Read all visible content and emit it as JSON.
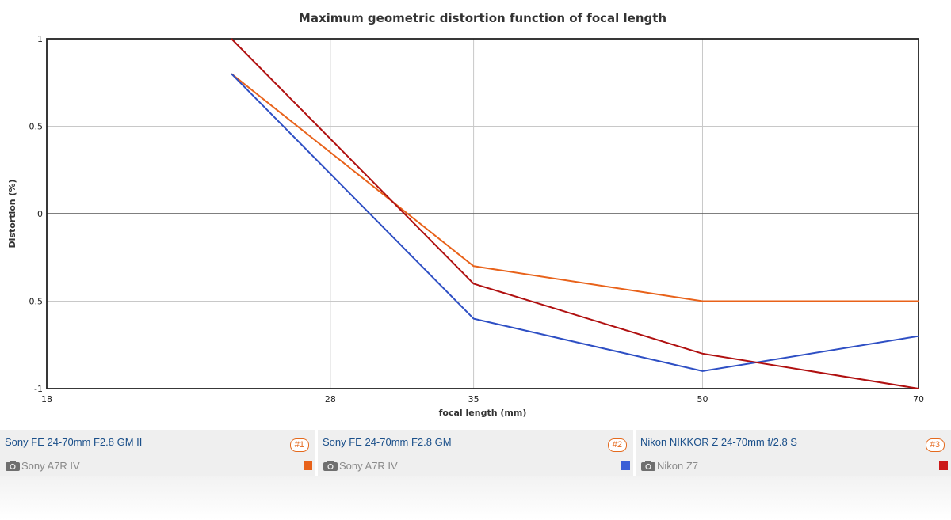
{
  "chart_data": {
    "type": "line",
    "title": "Maximum geometric distortion function of focal length",
    "xlabel": "focal length (mm)",
    "ylabel": "Distortion (%)",
    "x_ticks": [
      18,
      28,
      35,
      50,
      70
    ],
    "x_scale": "log",
    "xlim": [
      18,
      70
    ],
    "y_ticks": [
      1,
      0.5,
      0,
      -0.5,
      -1
    ],
    "y_tick_labels": [
      "1",
      "0.5",
      "0",
      "-0.5",
      "-1"
    ],
    "ylim": [
      -1,
      1
    ],
    "grid": true,
    "series": [
      {
        "name": "Sony FE 24-70mm F2.8 GM II",
        "color": "#e8621a",
        "x": [
          24,
          35,
          50,
          70
        ],
        "y": [
          0.8,
          -0.3,
          -0.5,
          -0.5
        ]
      },
      {
        "name": "Sony FE 24-70mm F2.8 GM",
        "color": "#2e4fc4",
        "x": [
          24,
          35,
          50,
          70
        ],
        "y": [
          0.8,
          -0.6,
          -0.9,
          -0.7
        ]
      },
      {
        "name": "Nikon NIKKOR Z 24-70mm f/2.8 S",
        "color": "#b01010",
        "x": [
          24,
          35,
          50,
          70
        ],
        "y": [
          1.0,
          -0.4,
          -0.8,
          -1.0
        ]
      }
    ]
  },
  "legend": [
    {
      "lens": "Sony FE 24-70mm F2.8 GM II",
      "badge": "#1",
      "camera": "Sony A7R IV",
      "color": "#e8621a"
    },
    {
      "lens": "Sony FE 24-70mm F2.8 GM",
      "badge": "#2",
      "camera": "Sony A7R IV",
      "color": "#3a5fd6"
    },
    {
      "lens": "Nikon NIKKOR Z 24-70mm f/2.8 S",
      "badge": "#3",
      "camera": "Nikon Z7",
      "color": "#cc1a1a"
    }
  ],
  "icons": {
    "camera": "camera-icon"
  }
}
